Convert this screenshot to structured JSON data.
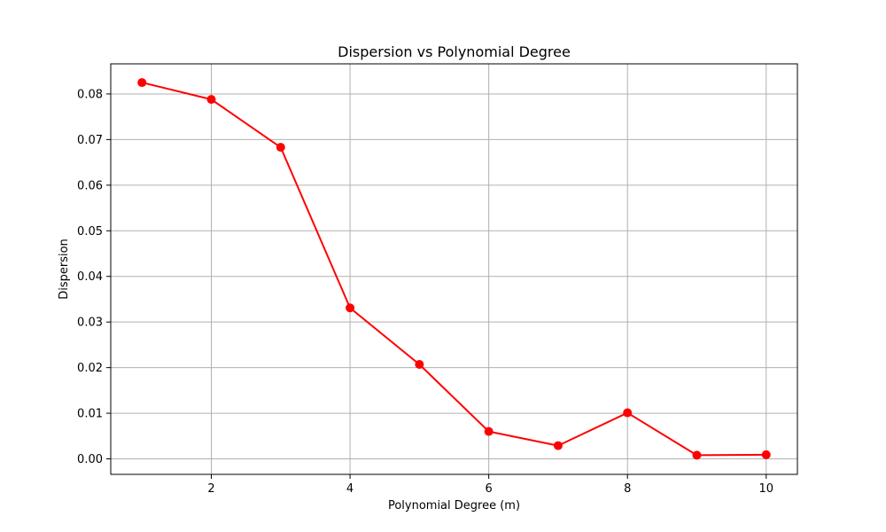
{
  "chart_data": {
    "type": "line",
    "title": "Dispersion vs Polynomial Degree",
    "xlabel": "Polynomial Degree (m)",
    "ylabel": "Dispersion",
    "xlim": [
      0.55,
      10.45
    ],
    "ylim": [
      -0.0034,
      0.0866
    ],
    "xticks": [
      2,
      4,
      6,
      8,
      10
    ],
    "xtick_labels": [
      "2",
      "4",
      "6",
      "8",
      "10"
    ],
    "yticks": [
      0.0,
      0.01,
      0.02,
      0.03,
      0.04,
      0.05,
      0.06,
      0.07,
      0.08
    ],
    "ytick_labels": [
      "0.00",
      "0.01",
      "0.02",
      "0.03",
      "0.04",
      "0.05",
      "0.06",
      "0.07",
      "0.08"
    ],
    "grid": true,
    "series": [
      {
        "x": [
          1,
          2,
          3,
          4,
          5,
          6,
          7,
          8,
          9,
          10
        ],
        "values": [
          0.0825,
          0.0788,
          0.0683,
          0.0331,
          0.0207,
          0.006,
          0.0029,
          0.0101,
          0.0008,
          0.0009
        ],
        "color": "#ff0000",
        "marker": "circle"
      }
    ]
  }
}
